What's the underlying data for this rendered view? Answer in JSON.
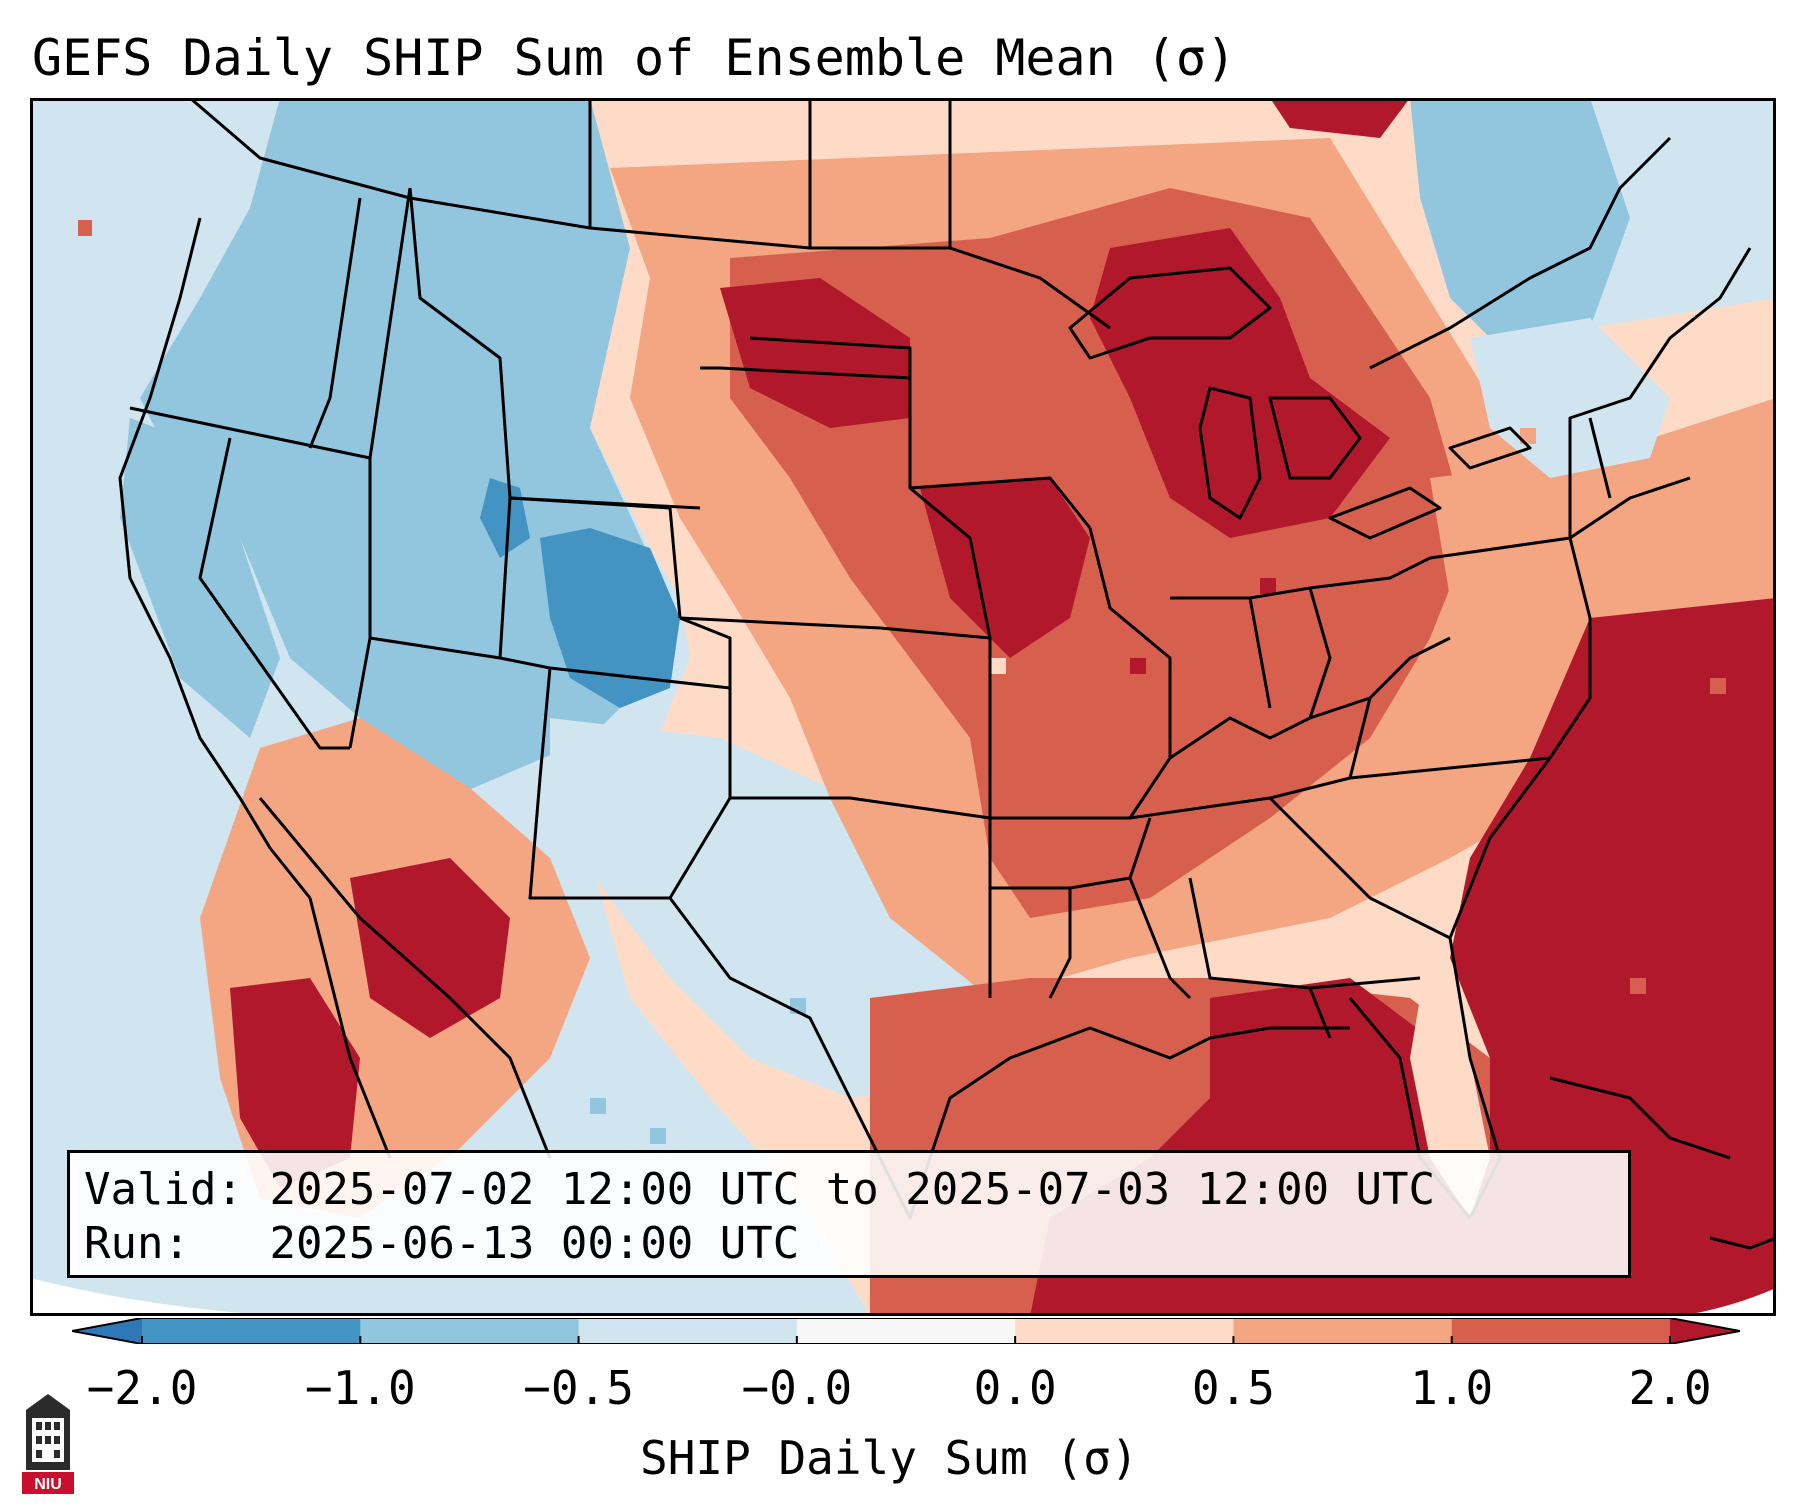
{
  "title": "GEFS Daily SHIP Sum of Ensemble Mean (σ)",
  "info": {
    "valid_label": "Valid:",
    "valid_value": "2025-07-02 12:00 UTC to 2025-07-03 12:00 UTC",
    "run_label": "Run:",
    "run_value": "2025-06-13 00:00 UTC"
  },
  "colorbar": {
    "label": "SHIP Daily Sum (σ)",
    "ticks": [
      "−2.0",
      "−1.0",
      "−0.5",
      "−0.0",
      "0.0",
      "0.5",
      "1.0",
      "2.0"
    ],
    "colors": {
      "below_min": "#2f78b8",
      "bins": [
        "#4393c3",
        "#92c5de",
        "#d1e5f0",
        "#f7f7f7",
        "#fddbc7",
        "#f4a582",
        "#d6604d"
      ],
      "above_max": "#b2182b"
    }
  },
  "logo": {
    "text": "NIU",
    "icon": "university-tower-icon"
  }
}
